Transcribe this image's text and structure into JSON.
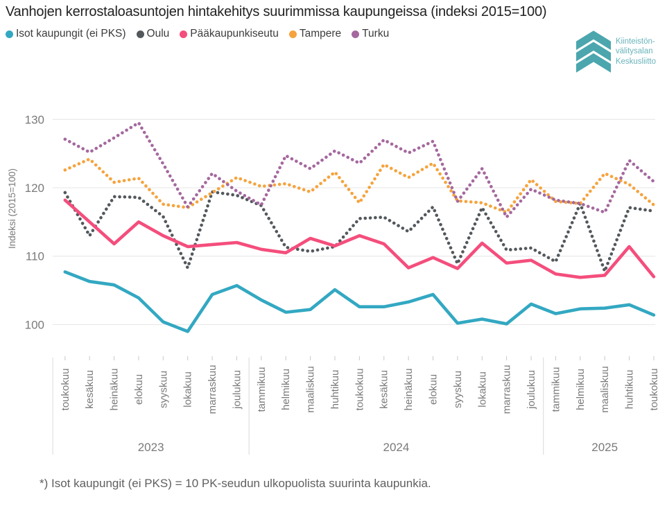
{
  "title": "Vanhojen kerrostaloasuntojen hintakehitys suurimmissa kaupungeissa (indeksi 2015=100)",
  "footnote": "*) Isot kaupungit (ei PKS) = 10 PK-seudun ulkopuolista suurinta kaupunkia.",
  "logo": {
    "line1": "Kiinteistön-",
    "line2": "välitysalan",
    "line3": "Keskusliitto",
    "chevron_color": "#4BA6AE",
    "text_color": "#6ab3ba"
  },
  "colors": {
    "grid": "#e4e4e4",
    "tick": "#c8c8c8",
    "separator": "#d8d8d8",
    "axis_text": "#7a7a7a"
  },
  "chart_data": {
    "type": "line",
    "title": "Vanhojen kerrostaloasuntojen hintakehitys suurimmissa kaupungeissa (indeksi 2015=100)",
    "ylabel": "Indeksi (2015=100)",
    "ylim": [
      98,
      131
    ],
    "yticks": [
      100,
      110,
      120,
      130
    ],
    "grid": true,
    "legend_position": "top",
    "x_labels": [
      "toukokuu",
      "kesäkuu",
      "heinäkuu",
      "elokuu",
      "syyskuu",
      "lokakuu",
      "marraskuu",
      "joulukuu",
      "tammikuu",
      "helmikuu",
      "maaliskuu",
      "huhtikuu",
      "toukokuu",
      "kesäkuu",
      "heinäkuu",
      "elokuu",
      "syyskuu",
      "lokakuu",
      "marraskuu",
      "joulukuu",
      "tammikuu",
      "helmikuu",
      "maaliskuu",
      "huhtikuu",
      "toukokuu"
    ],
    "year_groups": [
      {
        "label": "2023",
        "start": 0,
        "end": 7
      },
      {
        "label": "2024",
        "start": 8,
        "end": 19
      },
      {
        "label": "2025",
        "start": 20,
        "end": 24
      }
    ],
    "series": [
      {
        "name": "Isot kaupungit (ei PKS)",
        "color": "#33A8C2",
        "style": "solid",
        "values": [
          107.7,
          106.3,
          105.8,
          103.9,
          100.4,
          99.0,
          104.4,
          105.7,
          103.6,
          101.8,
          102.2,
          105.1,
          102.6,
          102.6,
          103.3,
          104.4,
          100.2,
          100.8,
          100.1,
          103.0,
          101.6,
          102.3,
          102.4,
          102.9,
          101.4
        ]
      },
      {
        "name": "Oulu",
        "color": "#53585C",
        "style": "dotted",
        "values": [
          119.3,
          113.0,
          118.7,
          118.6,
          115.8,
          108.3,
          119.4,
          118.9,
          117.4,
          111.3,
          110.7,
          111.4,
          115.5,
          115.7,
          113.6,
          117.2,
          108.9,
          117.1,
          110.9,
          111.2,
          109.2,
          117.7,
          107.8,
          117.1,
          116.6
        ]
      },
      {
        "name": "Pääkaupunkiseutu",
        "color": "#F44E7C",
        "style": "solid",
        "values": [
          118.2,
          115.0,
          111.8,
          115.0,
          113.0,
          111.4,
          111.7,
          112.0,
          111.0,
          110.5,
          112.6,
          111.5,
          113.0,
          111.8,
          108.3,
          109.8,
          108.2,
          111.9,
          109.0,
          109.4,
          107.4,
          106.9,
          107.2,
          111.4,
          107.0
        ]
      },
      {
        "name": "Tampere",
        "color": "#F5A33D",
        "style": "dotted",
        "values": [
          122.6,
          124.2,
          120.8,
          121.4,
          117.6,
          117.1,
          119.3,
          121.5,
          120.2,
          120.6,
          119.4,
          122.3,
          117.8,
          123.4,
          121.5,
          123.6,
          118.1,
          117.8,
          116.4,
          121.2,
          118.0,
          117.7,
          122.1,
          120.5,
          117.5
        ]
      },
      {
        "name": "Turku",
        "color": "#A4689E",
        "style": "dotted",
        "values": [
          127.1,
          125.2,
          127.3,
          129.5,
          123.5,
          117.2,
          122.1,
          119.5,
          117.5,
          124.7,
          122.8,
          125.4,
          123.6,
          127.0,
          125.1,
          126.8,
          118.0,
          122.8,
          115.7,
          119.8,
          118.2,
          117.7,
          116.4,
          124.0,
          120.9
        ]
      }
    ]
  }
}
